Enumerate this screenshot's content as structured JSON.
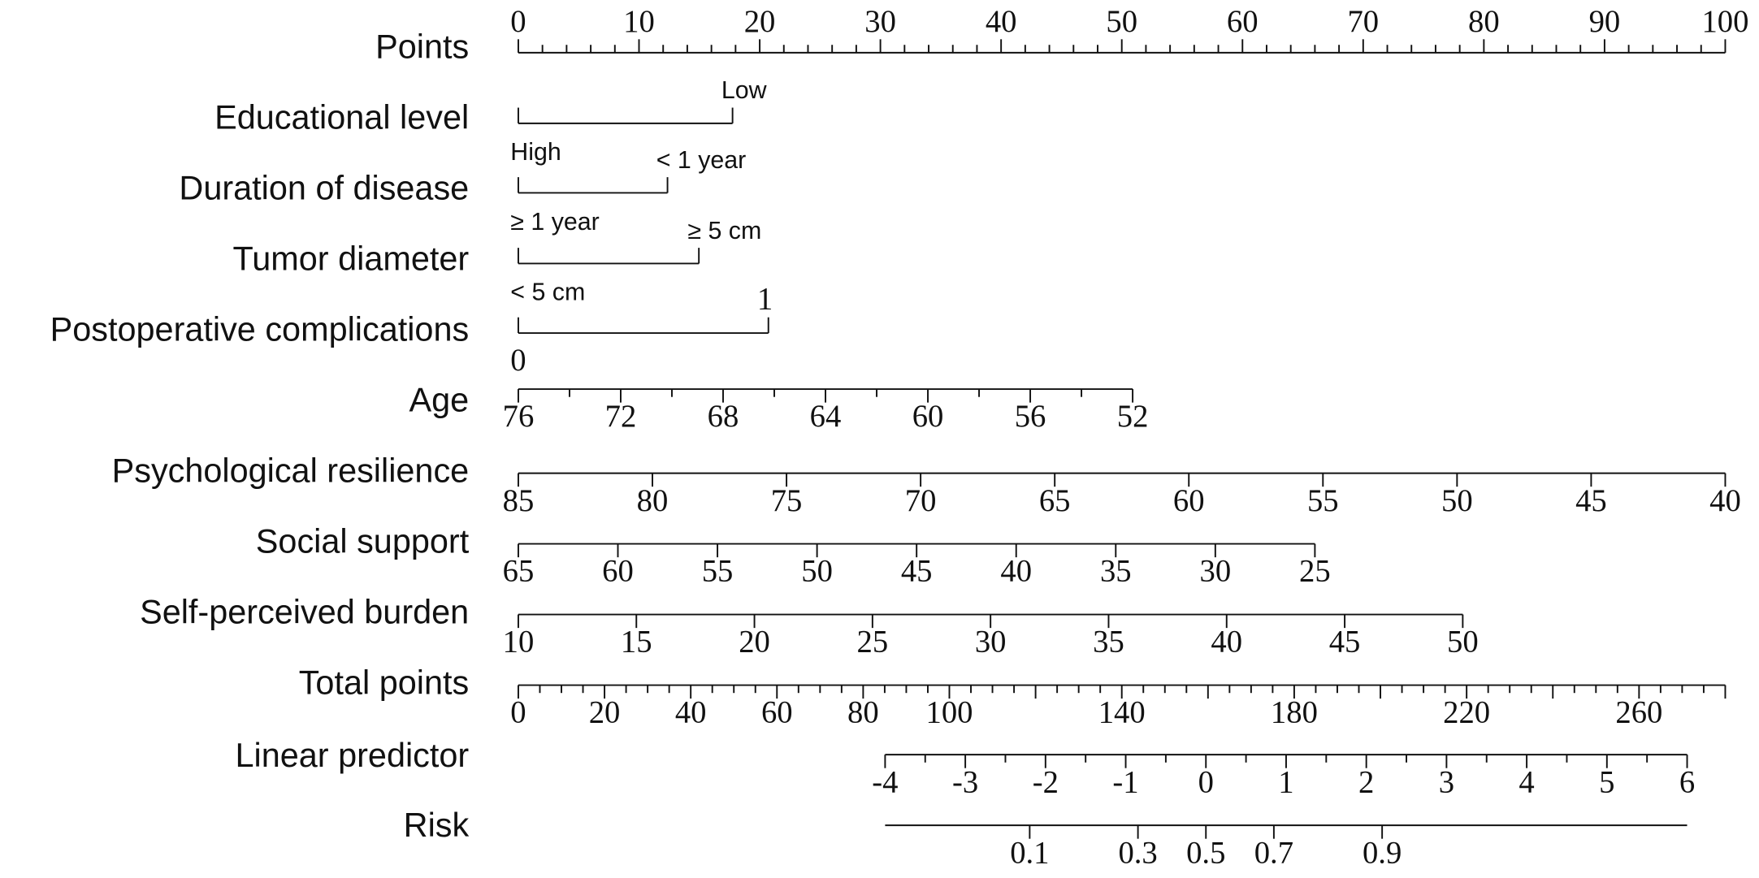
{
  "chart_data": {
    "type": "nomogram",
    "rows": [
      {
        "label": "Points",
        "kind": "axis",
        "lim": [
          0,
          100
        ],
        "points": [
          0,
          100
        ],
        "ticks": [
          0,
          10,
          20,
          30,
          40,
          50,
          60,
          70,
          80,
          90,
          100
        ],
        "minor_ticks": [
          2,
          4,
          6,
          8,
          12,
          14,
          16,
          18,
          22,
          24,
          26,
          28,
          32,
          34,
          36,
          38,
          42,
          44,
          46,
          48,
          52,
          54,
          56,
          58,
          62,
          64,
          66,
          68,
          72,
          74,
          76,
          78,
          82,
          84,
          86,
          88,
          92,
          94,
          96,
          98
        ]
      },
      {
        "label": "Educational level",
        "kind": "categorical",
        "levels": [
          {
            "label": "High",
            "points": 0
          },
          {
            "label": "Low",
            "points": 17.75
          }
        ]
      },
      {
        "label": "Duration of disease",
        "kind": "categorical",
        "levels": [
          {
            "label": "≥ 1 year",
            "points": 0
          },
          {
            "label": "< 1 year",
            "points": 12.36
          }
        ]
      },
      {
        "label": "Tumor diameter",
        "kind": "categorical",
        "levels": [
          {
            "label": "< 5 cm",
            "points": 0
          },
          {
            "label": "≥ 5 cm",
            "points": 14.96
          }
        ]
      },
      {
        "label": "Postoperative complications",
        "kind": "categorical",
        "font": "serif",
        "levels": [
          {
            "label": "0",
            "points": 0
          },
          {
            "label": "1",
            "points": 20.72
          }
        ]
      },
      {
        "label": "Age",
        "kind": "axis",
        "lim": [
          76,
          52
        ],
        "points": [
          0,
          50.9
        ],
        "ticks": [
          76,
          72,
          68,
          64,
          60,
          56,
          52
        ],
        "minor_ticks": [
          74,
          70,
          66,
          62,
          58,
          54
        ]
      },
      {
        "label": "Psychological resilience",
        "kind": "axis",
        "lim": [
          85,
          40
        ],
        "points": [
          0,
          100
        ],
        "ticks": [
          85,
          80,
          75,
          70,
          65,
          60,
          55,
          50,
          45,
          40
        ]
      },
      {
        "label": "Social support",
        "kind": "axis",
        "lim": [
          65,
          25
        ],
        "points": [
          0,
          66.0
        ],
        "ticks": [
          65,
          60,
          55,
          50,
          45,
          40,
          35,
          30,
          25
        ]
      },
      {
        "label": "Self-perceived burden",
        "kind": "axis",
        "lim": [
          10,
          50
        ],
        "points": [
          0,
          78.25
        ],
        "ticks": [
          10,
          15,
          20,
          25,
          30,
          35,
          40,
          45,
          50
        ]
      },
      {
        "label": "Total points",
        "kind": "axis",
        "lim": [
          0,
          280
        ],
        "points": [
          0,
          100
        ],
        "ticks": [
          0,
          20,
          40,
          60,
          80,
          100,
          140,
          180,
          220,
          260
        ],
        "major_ticks": [
          120,
          160,
          200,
          240,
          280
        ],
        "minor_ticks": [
          5,
          10,
          15,
          25,
          30,
          35,
          45,
          50,
          55,
          65,
          70,
          75,
          85,
          90,
          95,
          105,
          110,
          115,
          125,
          130,
          135,
          145,
          150,
          155,
          165,
          170,
          175,
          185,
          190,
          195,
          205,
          210,
          215,
          225,
          230,
          235,
          245,
          250,
          255,
          265,
          270,
          275
        ]
      },
      {
        "label": "Linear predictor",
        "kind": "axis",
        "lim": [
          -4,
          6
        ],
        "points": [
          30.39,
          96.84
        ],
        "ticks": [
          -4,
          -3,
          -2,
          -1,
          0,
          1,
          2,
          3,
          4,
          5,
          6
        ],
        "minor_ticks": [
          -3.5,
          -2.5,
          -1.5,
          -0.5,
          0.5,
          1.5,
          2.5,
          3.5,
          4.5,
          5.5
        ]
      },
      {
        "label": "Risk",
        "kind": "axis",
        "scale": "logit",
        "lim": [
          -4,
          6
        ],
        "points": [
          30.39,
          96.84
        ],
        "ticks": [
          0.1,
          0.3,
          0.5,
          0.7,
          0.9
        ]
      }
    ]
  }
}
